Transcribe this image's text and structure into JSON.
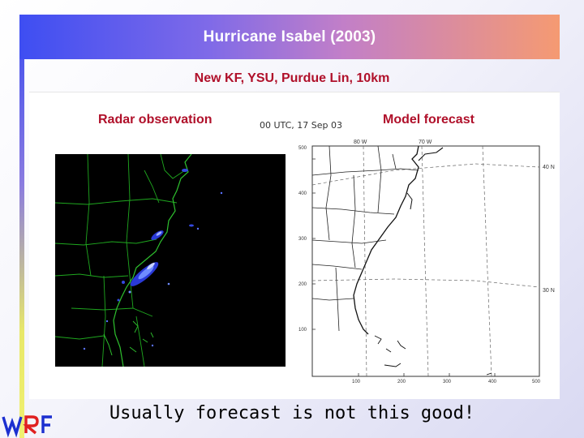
{
  "slide": {
    "title": "Hurricane Isabel (2003)",
    "subtitle": "New KF, YSU, Purdue Lin, 10km",
    "caption": "Usually forecast is not this good!"
  },
  "panels": {
    "radar_label": "Radar observation",
    "model_label": "Model forecast",
    "timestamp": "00 UTC, 17 Sep 03"
  },
  "model_map": {
    "top_labels": [
      "80 W",
      "70 W"
    ],
    "right_labels": [
      "40 N",
      "30 N"
    ],
    "left_ticks": [
      "500",
      "400",
      "300",
      "200",
      "100"
    ],
    "bottom_ticks": [
      "100",
      "200",
      "300",
      "400",
      "500"
    ]
  },
  "logo": {
    "text": "WRF",
    "colors": [
      "#1c2fd0",
      "#e02020",
      "#1c2fd0"
    ]
  }
}
